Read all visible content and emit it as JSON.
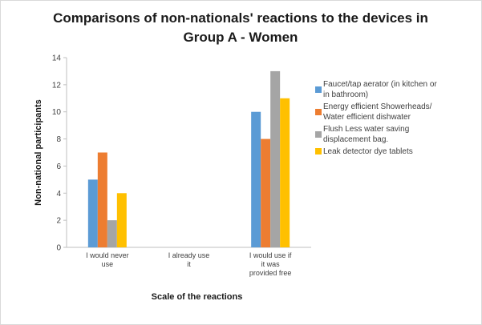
{
  "chart_data": {
    "type": "bar",
    "title_lines": [
      "Comparisons of non-nationals' reactions to the devices in",
      "Group A - Women"
    ],
    "xlabel": "Scale of the reactions",
    "ylabel": "Non-national participants",
    "ylim": [
      0,
      14
    ],
    "yticks": [
      0,
      2,
      4,
      6,
      8,
      10,
      12,
      14
    ],
    "grid": false,
    "legend_position": "right",
    "categories": [
      [
        "I would never",
        "use"
      ],
      [
        "I already use",
        "it"
      ],
      [
        "I would use if",
        "it was",
        "provided free"
      ]
    ],
    "series": [
      {
        "name": [
          "Faucet/tap aerator (in kitchen or",
          "in bathroom)"
        ],
        "color": "#5b9bd5",
        "values": [
          5,
          0,
          10
        ]
      },
      {
        "name": [
          "Energy efficient Showerheads/",
          "Water efficient dishwater"
        ],
        "color": "#ed7d31",
        "values": [
          7,
          0,
          8
        ]
      },
      {
        "name": [
          "Flush Less water saving",
          "displacement bag."
        ],
        "color": "#a5a5a5",
        "values": [
          2,
          0,
          13
        ]
      },
      {
        "name": [
          "Leak detector dye tablets"
        ],
        "color": "#ffc000",
        "values": [
          4,
          0,
          11
        ]
      }
    ]
  }
}
